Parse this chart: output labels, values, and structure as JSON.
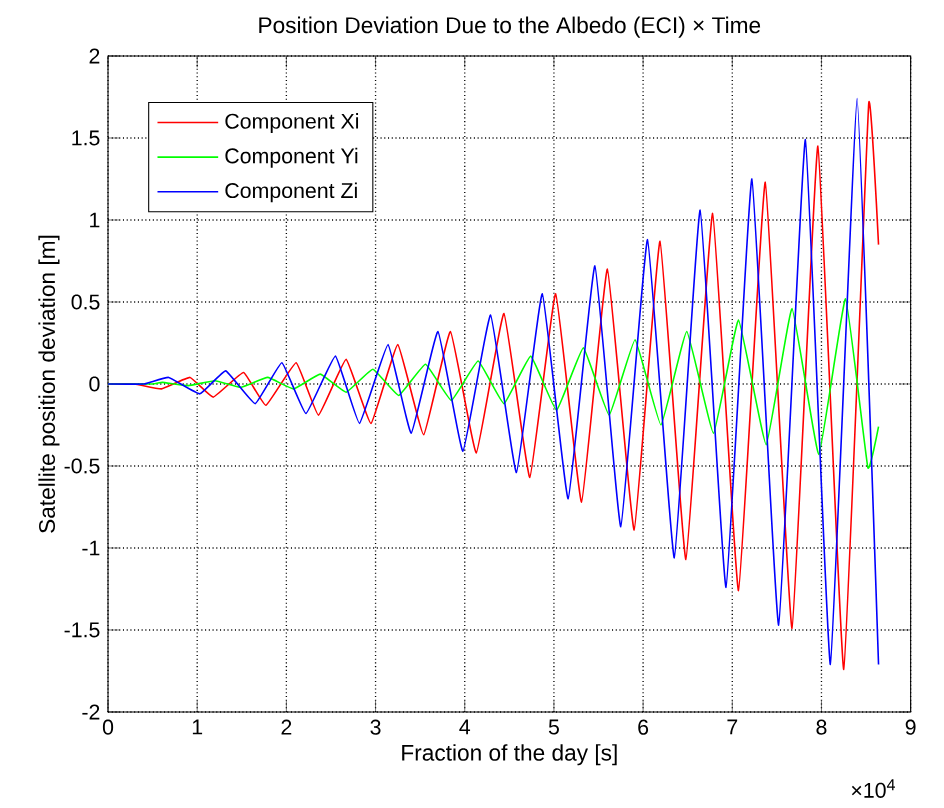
{
  "chart_data": {
    "type": "line",
    "title": "Position Deviation Due to the Albedo (ECI) × Time",
    "xlabel": "Fraction of the day [s]",
    "ylabel": "Satellite position deviation [m]",
    "xlim": [
      0,
      9
    ],
    "ylim": [
      -2,
      2
    ],
    "xticks": [
      0,
      1,
      2,
      3,
      4,
      5,
      6,
      7,
      8,
      9
    ],
    "yticks": [
      -2,
      -1.5,
      -1,
      -0.5,
      0,
      0.5,
      1,
      1.5,
      2
    ],
    "grid": true,
    "legend": "top left",
    "marker": "none",
    "line_style": "solid",
    "annotations": [
      "×10$^{4}$"
    ],
    "series": [
      {
        "name": "Component Xi",
        "color": "#ff0000",
        "x": [
          0,
          0.3,
          0.6,
          0.92,
          1.18,
          1.52,
          1.77,
          2.11,
          2.36,
          2.67,
          2.95,
          3.25,
          3.54,
          3.84,
          4.13,
          4.44,
          4.73,
          5.02,
          5.31,
          5.6,
          5.9,
          6.19,
          6.48,
          6.78,
          7.07,
          7.37,
          7.67,
          7.96,
          8.25,
          8.53,
          8.64
        ],
        "values": [
          0,
          0,
          -0.03,
          0.04,
          -0.08,
          0.07,
          -0.13,
          0.13,
          -0.19,
          0.15,
          -0.24,
          0.24,
          -0.31,
          0.32,
          -0.42,
          0.43,
          -0.57,
          0.55,
          -0.72,
          0.7,
          -0.89,
          0.87,
          -1.07,
          1.04,
          -1.26,
          1.23,
          -1.49,
          1.45,
          -1.74,
          1.71,
          0.85
        ]
      },
      {
        "name": "Component Yi",
        "color": "#00ff00",
        "x": [
          0,
          0.5,
          0.61,
          0.9,
          1.2,
          1.49,
          1.79,
          2.08,
          2.38,
          2.67,
          2.97,
          3.26,
          3.56,
          3.85,
          4.15,
          4.44,
          4.74,
          5.03,
          5.33,
          5.62,
          5.91,
          6.2,
          6.49,
          6.79,
          7.07,
          7.38,
          7.67,
          7.97,
          8.27,
          8.52,
          8.64
        ],
        "values": [
          0,
          0,
          0.01,
          -0.01,
          0.02,
          -0.02,
          0.04,
          -0.03,
          0.06,
          -0.05,
          0.09,
          -0.07,
          0.12,
          -0.1,
          0.14,
          -0.12,
          0.17,
          -0.16,
          0.22,
          -0.19,
          0.27,
          -0.25,
          0.32,
          -0.3,
          0.39,
          -0.37,
          0.46,
          -0.43,
          0.52,
          -0.51,
          -0.26
        ]
      },
      {
        "name": "Component Zi",
        "color": "#0000ff",
        "x": [
          0,
          0.4,
          0.68,
          1.03,
          1.32,
          1.65,
          1.95,
          2.22,
          2.55,
          2.82,
          3.14,
          3.4,
          3.7,
          3.98,
          4.29,
          4.58,
          4.87,
          5.16,
          5.46,
          5.75,
          6.05,
          6.35,
          6.64,
          6.93,
          7.22,
          7.52,
          7.82,
          8.1,
          8.4,
          8.64
        ],
        "values": [
          0,
          0,
          0.04,
          -0.06,
          0.08,
          -0.12,
          0.13,
          -0.18,
          0.17,
          -0.24,
          0.24,
          -0.3,
          0.32,
          -0.41,
          0.42,
          -0.54,
          0.55,
          -0.7,
          0.72,
          -0.87,
          0.88,
          -1.06,
          1.06,
          -1.24,
          1.25,
          -1.47,
          1.49,
          -1.71,
          1.74,
          -1.71
        ]
      }
    ]
  }
}
